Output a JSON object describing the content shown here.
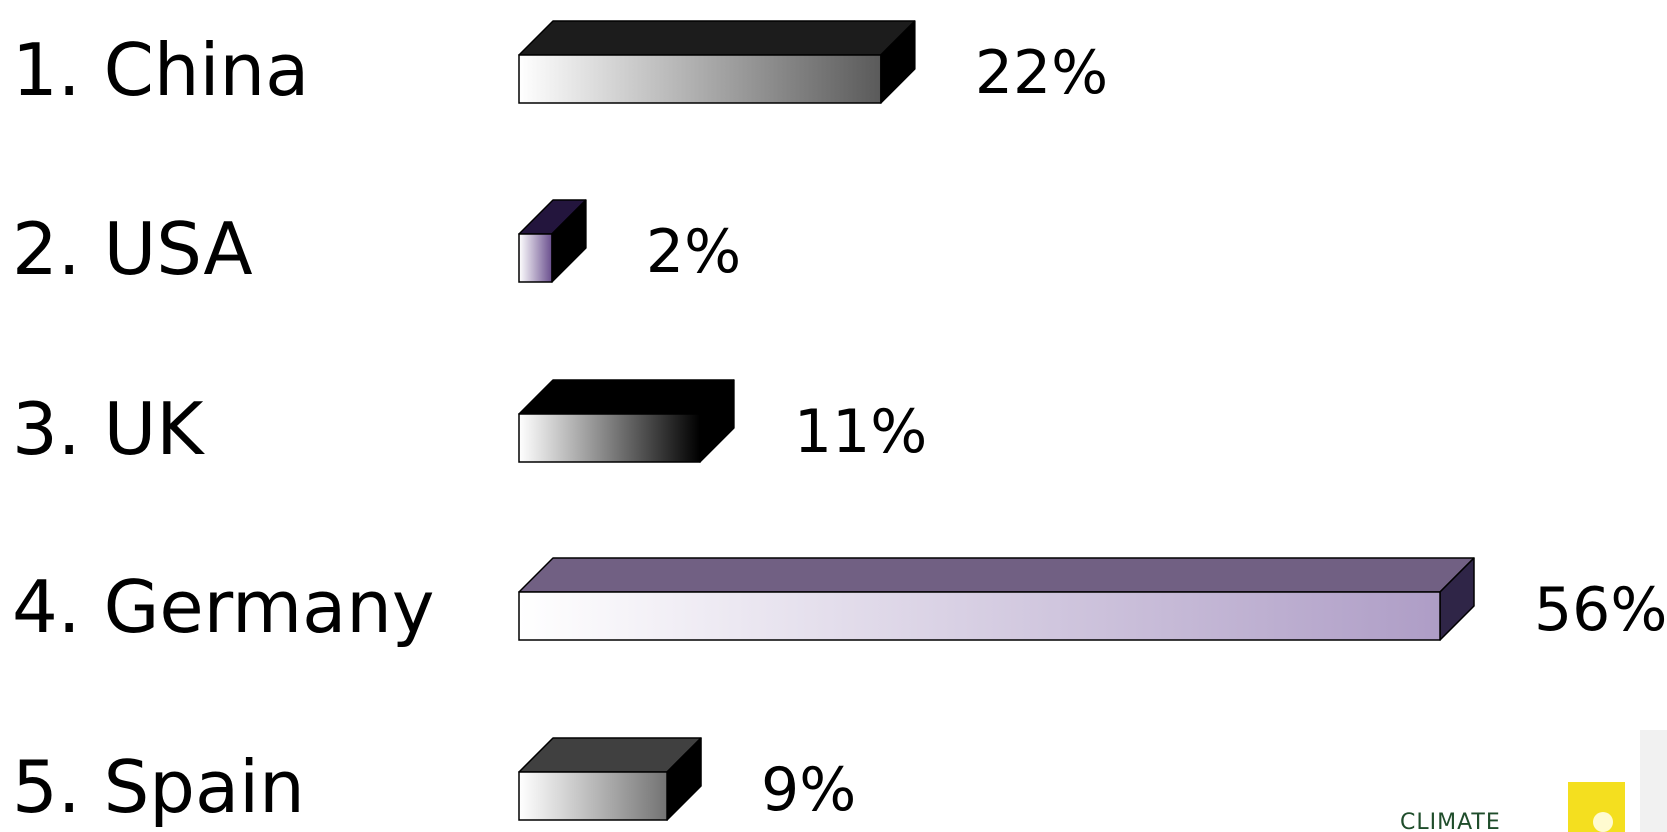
{
  "chart_data": {
    "type": "bar",
    "orientation": "horizontal",
    "title": "",
    "xlabel": "",
    "ylabel": "",
    "xlim": [
      0,
      56
    ],
    "grid": false,
    "legend": "none",
    "categories": [
      "1.  China",
      "2.  USA",
      "3.  UK",
      "4.  Germany",
      "5.  Spain"
    ],
    "values": [
      22,
      2,
      11,
      56,
      9
    ],
    "value_labels": [
      "22%",
      "2%",
      "11%",
      "56%",
      "9%"
    ],
    "bar_styles": [
      {
        "front_start": "#ffffff",
        "front_end": "#5a5a5a",
        "top": "#1c1c1c",
        "side": "#000000"
      },
      {
        "front_start": "#ffffff",
        "front_end": "#6a4f8e",
        "top": "#23153d",
        "side": "#000000"
      },
      {
        "front_start": "#ffffff",
        "front_end": "#000000",
        "top": "#000000",
        "side": "#000000"
      },
      {
        "front_start": "#ffffff",
        "front_end": "#ae9dc6",
        "top": "#716083",
        "side": "#2f2547"
      },
      {
        "front_start": "#ffffff",
        "front_end": "#737373",
        "top": "#404040",
        "side": "#000000"
      }
    ]
  },
  "logo": {
    "text": "CLIMATE",
    "icon_color": "#f4df1f",
    "icon_name": "sun-square-icon"
  }
}
